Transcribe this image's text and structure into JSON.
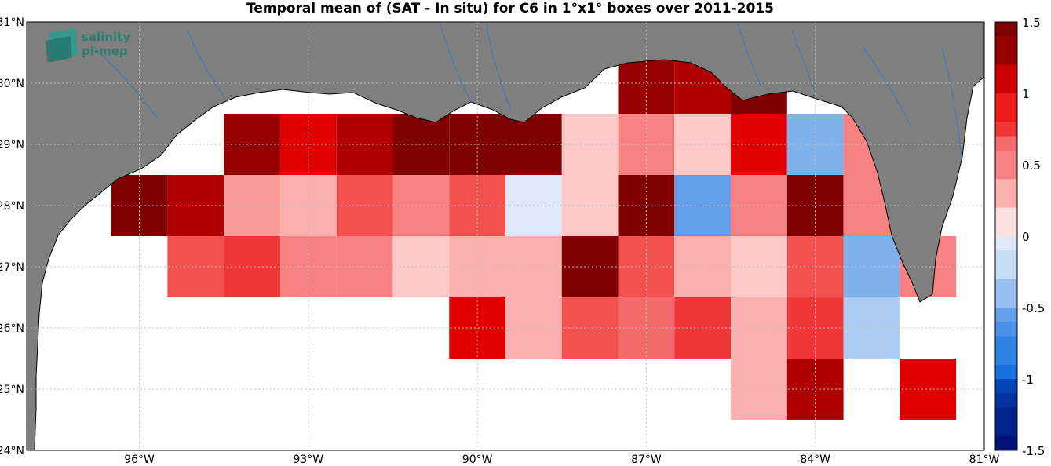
{
  "title": "Temporal mean of (SAT - In situ) for C6 in 1°x1° boxes over 2011-2015",
  "logo": {
    "line1": "salinity",
    "line2": "pi-mep"
  },
  "map_extent": {
    "lon": [
      -98,
      -81
    ],
    "lat": [
      24,
      31
    ]
  },
  "lat_ticks": [
    {
      "lat": 31,
      "label": "31°N"
    },
    {
      "lat": 30,
      "label": "30°N"
    },
    {
      "lat": 29,
      "label": "29°N"
    },
    {
      "lat": 28,
      "label": "28°N"
    },
    {
      "lat": 27,
      "label": "27°N"
    },
    {
      "lat": 26,
      "label": "26°N"
    },
    {
      "lat": 25,
      "label": "25°N"
    },
    {
      "lat": 24,
      "label": "24°N"
    }
  ],
  "lon_ticks": [
    {
      "lon": -96,
      "label": "96°W"
    },
    {
      "lon": -93,
      "label": "93°W"
    },
    {
      "lon": -90,
      "label": "90°W"
    },
    {
      "lon": -87,
      "label": "87°W"
    },
    {
      "lon": -84,
      "label": "84°W"
    },
    {
      "lon": -81,
      "label": "81°W"
    }
  ],
  "colorbar": {
    "min": -1.5,
    "max": 1.5,
    "steps": 30,
    "ticks": [
      {
        "v": 1.5,
        "label": "1.5"
      },
      {
        "v": 1,
        "label": "1"
      },
      {
        "v": 0.5,
        "label": "0.5"
      },
      {
        "v": 0,
        "label": "0"
      },
      {
        "v": -0.5,
        "label": "-0.5"
      },
      {
        "v": -1,
        "label": "-1"
      },
      {
        "v": -1.5,
        "label": "-1.5"
      }
    ]
  },
  "colors": {
    "land": "#7f7f7f",
    "ocean": "#ffffff",
    "river": "#3a78c2",
    "grid": "#bfbfbf"
  },
  "chart_data": {
    "type": "heatmap",
    "title": "Temporal mean of (SAT - In situ) for C6 in 1°x1° boxes over 2011-2015",
    "units": "1°x1° boxes, lon west of Greenwich (negative), lat north",
    "cells": [
      {
        "lon0": -94.5,
        "lat0": 28.5,
        "v": 1.3
      },
      {
        "lon0": -93.5,
        "lat0": 28.5,
        "v": 1.0
      },
      {
        "lon0": -92.5,
        "lat0": 28.5,
        "v": 1.2
      },
      {
        "lon0": -91.5,
        "lat0": 28.5,
        "v": 1.5
      },
      {
        "lon0": -90.5,
        "lat0": 28.5,
        "v": 1.5
      },
      {
        "lon0": -89.5,
        "lat0": 28.5,
        "v": 1.5
      },
      {
        "lon0": -88.5,
        "lat0": 28.5,
        "v": 0.2
      },
      {
        "lon0": -87.5,
        "lat0": 29.5,
        "v": 1.3
      },
      {
        "lon0": -86.5,
        "lat0": 29.5,
        "v": 1.2
      },
      {
        "lon0": -85.5,
        "lat0": 29.5,
        "v": 1.4
      },
      {
        "lon0": -87.5,
        "lat0": 28.5,
        "v": 0.5
      },
      {
        "lon0": -86.5,
        "lat0": 28.5,
        "v": 0.2
      },
      {
        "lon0": -85.5,
        "lat0": 28.5,
        "v": 1.0
      },
      {
        "lon0": -84.5,
        "lat0": 28.5,
        "v": -0.5
      },
      {
        "lon0": -83.5,
        "lat0": 28.5,
        "v": 0.45
      },
      {
        "lon0": -96.5,
        "lat0": 27.5,
        "v": 1.5
      },
      {
        "lon0": -95.5,
        "lat0": 27.5,
        "v": 1.2
      },
      {
        "lon0": -94.5,
        "lat0": 27.5,
        "v": 0.4
      },
      {
        "lon0": -93.5,
        "lat0": 27.5,
        "v": 0.3
      },
      {
        "lon0": -92.5,
        "lat0": 27.5,
        "v": 0.65
      },
      {
        "lon0": -91.5,
        "lat0": 27.5,
        "v": 0.45
      },
      {
        "lon0": -90.5,
        "lat0": 27.5,
        "v": 0.65
      },
      {
        "lon0": -89.5,
        "lat0": 27.5,
        "v": -0.15
      },
      {
        "lon0": -88.5,
        "lat0": 27.5,
        "v": 0.2
      },
      {
        "lon0": -87.5,
        "lat0": 27.5,
        "v": 1.5
      },
      {
        "lon0": -86.5,
        "lat0": 27.5,
        "v": -0.6
      },
      {
        "lon0": -85.5,
        "lat0": 27.5,
        "v": 0.5
      },
      {
        "lon0": -84.5,
        "lat0": 27.5,
        "v": 1.5
      },
      {
        "lon0": -83.5,
        "lat0": 27.5,
        "v": 0.45
      },
      {
        "lon0": -95.5,
        "lat0": 26.5,
        "v": 0.65
      },
      {
        "lon0": -94.5,
        "lat0": 26.5,
        "v": 0.8
      },
      {
        "lon0": -93.5,
        "lat0": 26.5,
        "v": 0.5
      },
      {
        "lon0": -92.5,
        "lat0": 26.5,
        "v": 0.5
      },
      {
        "lon0": -91.5,
        "lat0": 26.5,
        "v": 0.2
      },
      {
        "lon0": -90.5,
        "lat0": 26.5,
        "v": 0.35
      },
      {
        "lon0": -89.5,
        "lat0": 26.5,
        "v": 0.35
      },
      {
        "lon0": -88.5,
        "lat0": 26.5,
        "v": 1.5
      },
      {
        "lon0": -87.5,
        "lat0": 26.5,
        "v": 0.65
      },
      {
        "lon0": -86.5,
        "lat0": 26.5,
        "v": 0.35
      },
      {
        "lon0": -85.5,
        "lat0": 26.5,
        "v": 0.2
      },
      {
        "lon0": -84.5,
        "lat0": 26.5,
        "v": 0.65
      },
      {
        "lon0": -83.5,
        "lat0": 26.5,
        "v": -0.45
      },
      {
        "lon0": -82.5,
        "lat0": 26.5,
        "v": 0.5
      },
      {
        "lon0": -90.5,
        "lat0": 25.5,
        "v": 1.0
      },
      {
        "lon0": -89.5,
        "lat0": 25.5,
        "v": 0.35
      },
      {
        "lon0": -88.5,
        "lat0": 25.5,
        "v": 0.65
      },
      {
        "lon0": -87.5,
        "lat0": 25.5,
        "v": 0.55
      },
      {
        "lon0": -86.5,
        "lat0": 25.5,
        "v": 0.8
      },
      {
        "lon0": -85.5,
        "lat0": 25.5,
        "v": 0.35
      },
      {
        "lon0": -84.5,
        "lat0": 25.5,
        "v": 0.8
      },
      {
        "lon0": -83.5,
        "lat0": 25.5,
        "v": -0.35
      },
      {
        "lon0": -85.5,
        "lat0": 24.5,
        "v": 0.35
      },
      {
        "lon0": -84.5,
        "lat0": 24.5,
        "v": 1.2
      },
      {
        "lon0": -82.5,
        "lat0": 24.5,
        "v": 1.0
      }
    ]
  }
}
